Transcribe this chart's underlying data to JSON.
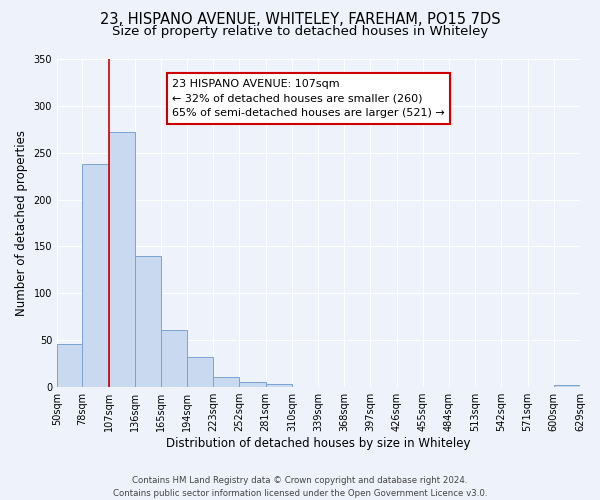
{
  "title1": "23, HISPANO AVENUE, WHITELEY, FAREHAM, PO15 7DS",
  "title2": "Size of property relative to detached houses in Whiteley",
  "xlabel": "Distribution of detached houses by size in Whiteley",
  "ylabel": "Number of detached properties",
  "bins": [
    50,
    78,
    107,
    136,
    165,
    194,
    223,
    252,
    281,
    310,
    339,
    368,
    397,
    426,
    455,
    484,
    513,
    542,
    571,
    600,
    629
  ],
  "bar_heights": [
    46,
    238,
    272,
    140,
    61,
    32,
    11,
    5,
    3,
    0,
    0,
    0,
    0,
    0,
    0,
    0,
    0,
    0,
    0,
    2
  ],
  "bar_color": "#c9d9f0",
  "bar_edge_color": "#7ba3d4",
  "redline_x": 107,
  "ylim": [
    0,
    350
  ],
  "yticks": [
    0,
    50,
    100,
    150,
    200,
    250,
    300,
    350
  ],
  "annotation_title": "23 HISPANO AVENUE: 107sqm",
  "annotation_line1": "← 32% of detached houses are smaller (260)",
  "annotation_line2": "65% of semi-detached houses are larger (521) →",
  "annotation_box_color": "#ffffff",
  "annotation_box_edgecolor": "#cc0000",
  "footer1": "Contains HM Land Registry data © Crown copyright and database right 2024.",
  "footer2": "Contains public sector information licensed under the Open Government Licence v3.0.",
  "background_color": "#eef2fa",
  "grid_color": "#ffffff",
  "title1_fontsize": 10.5,
  "title2_fontsize": 9.5,
  "tick_fontsize": 7,
  "ylabel_fontsize": 8.5,
  "xlabel_fontsize": 8.5
}
